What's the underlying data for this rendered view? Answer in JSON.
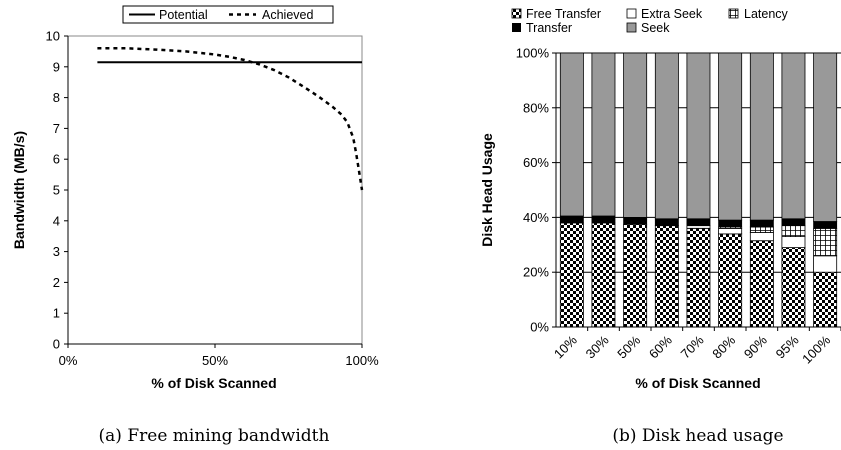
{
  "captions": {
    "a": "(a) Free mining bandwidth",
    "b": "(b) Disk head usage"
  },
  "chart_data": [
    {
      "type": "line",
      "title": "",
      "xlabel": "% of Disk Scanned",
      "ylabel": "Bandwidth (MB/s)",
      "xlim": [
        0,
        100
      ],
      "ylim": [
        0,
        10
      ],
      "x_ticks": [
        "0%",
        "50%",
        "100%"
      ],
      "y_ticks": [
        "0",
        "1",
        "2",
        "3",
        "4",
        "5",
        "6",
        "7",
        "8",
        "9",
        "10"
      ],
      "legend_position": "top",
      "grid": false,
      "series": [
        {
          "name": "Potential",
          "style": "solid",
          "color": "#000000",
          "x": [
            10,
            100
          ],
          "y": [
            9.15,
            9.15
          ]
        },
        {
          "name": "Achieved",
          "style": "dashed",
          "color": "#000000",
          "x": [
            10,
            20,
            30,
            40,
            50,
            55,
            60,
            65,
            70,
            75,
            80,
            85,
            90,
            93,
            95,
            97,
            98,
            99,
            100
          ],
          "y": [
            9.6,
            9.6,
            9.56,
            9.5,
            9.4,
            9.32,
            9.22,
            9.08,
            8.9,
            8.66,
            8.36,
            8.05,
            7.7,
            7.45,
            7.2,
            6.7,
            6.2,
            5.6,
            5.0
          ]
        }
      ]
    },
    {
      "type": "bar",
      "stacked": true,
      "percent": true,
      "title": "",
      "xlabel": "% of Disk Scanned",
      "ylabel": "Disk Head Usage",
      "ylim": [
        0,
        100
      ],
      "y_ticks": [
        "0%",
        "20%",
        "40%",
        "60%",
        "80%",
        "100%"
      ],
      "categories": [
        "10%",
        "30%",
        "50%",
        "60%",
        "70%",
        "80%",
        "90%",
        "95%",
        "100%"
      ],
      "legend_position": "top",
      "grid": true,
      "series": [
        {
          "name": "Free Transfer",
          "pattern": "checker",
          "values": [
            38,
            38,
            37.5,
            37,
            36,
            34,
            31.5,
            29,
            20
          ]
        },
        {
          "name": "Extra Seek",
          "pattern": "white",
          "values": [
            0,
            0,
            0,
            0,
            1,
            2,
            3,
            4,
            6
          ]
        },
        {
          "name": "Latency",
          "pattern": "grid",
          "values": [
            0,
            0,
            0,
            0,
            0,
            0.5,
            2,
            4,
            10
          ]
        },
        {
          "name": "Transfer",
          "pattern": "black",
          "values": [
            2.5,
            2.5,
            2.5,
            2.5,
            2.5,
            2.5,
            2.5,
            2.5,
            2.5
          ]
        },
        {
          "name": "Seek",
          "pattern": "gray",
          "values": [
            59.5,
            59.5,
            60,
            60.5,
            60.5,
            61,
            61,
            60.5,
            61.5
          ]
        }
      ]
    }
  ]
}
